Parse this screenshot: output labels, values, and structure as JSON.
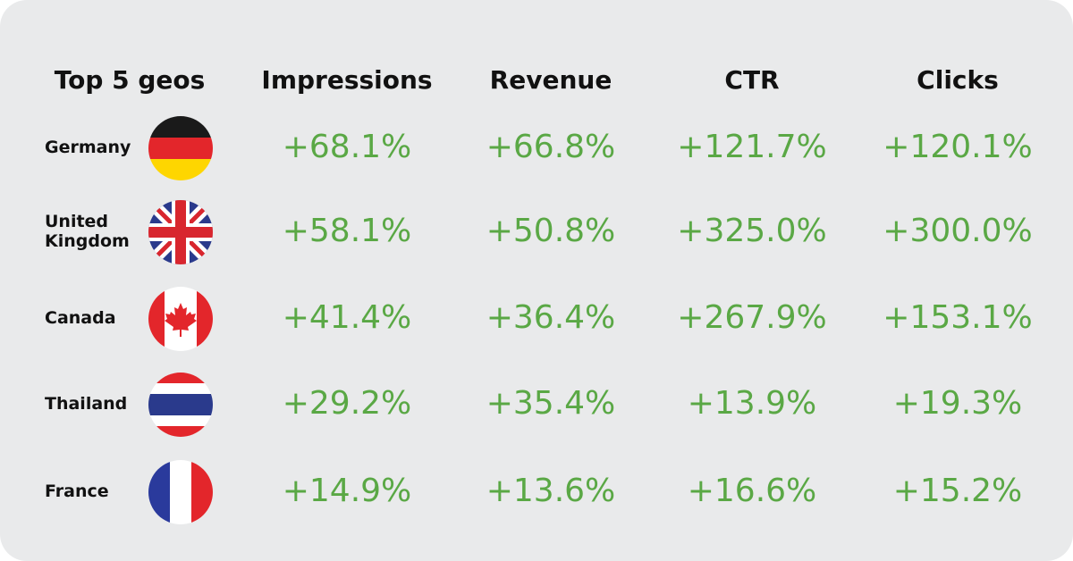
{
  "headers": {
    "geo": "Top 5 geos",
    "impressions": "Impressions",
    "revenue": "Revenue",
    "ctr": "CTR",
    "clicks": "Clicks"
  },
  "colors": {
    "background": "#e9eaeb",
    "positive_value": "#5aa845",
    "text": "#111111"
  },
  "rows": [
    {
      "country": "Germany",
      "flag_icon": "germany-flag-icon",
      "impressions": "+68.1%",
      "revenue": "+66.8%",
      "ctr": "+121.7%",
      "clicks": "+120.1%"
    },
    {
      "country": "United Kingdom",
      "flag_icon": "united-kingdom-flag-icon",
      "impressions": "+58.1%",
      "revenue": "+50.8%",
      "ctr": "+325.0%",
      "clicks": "+300.0%"
    },
    {
      "country": "Canada",
      "flag_icon": "canada-flag-icon",
      "impressions": "+41.4%",
      "revenue": "+36.4%",
      "ctr": "+267.9%",
      "clicks": "+153.1%"
    },
    {
      "country": "Thailand",
      "flag_icon": "thailand-flag-icon",
      "impressions": "+29.2%",
      "revenue": "+35.4%",
      "ctr": "+13.9%",
      "clicks": "+19.3%"
    },
    {
      "country": "France",
      "flag_icon": "france-flag-icon",
      "impressions": "+14.9%",
      "revenue": "+13.6%",
      "ctr": "+16.6%",
      "clicks": "+15.2%"
    }
  ]
}
